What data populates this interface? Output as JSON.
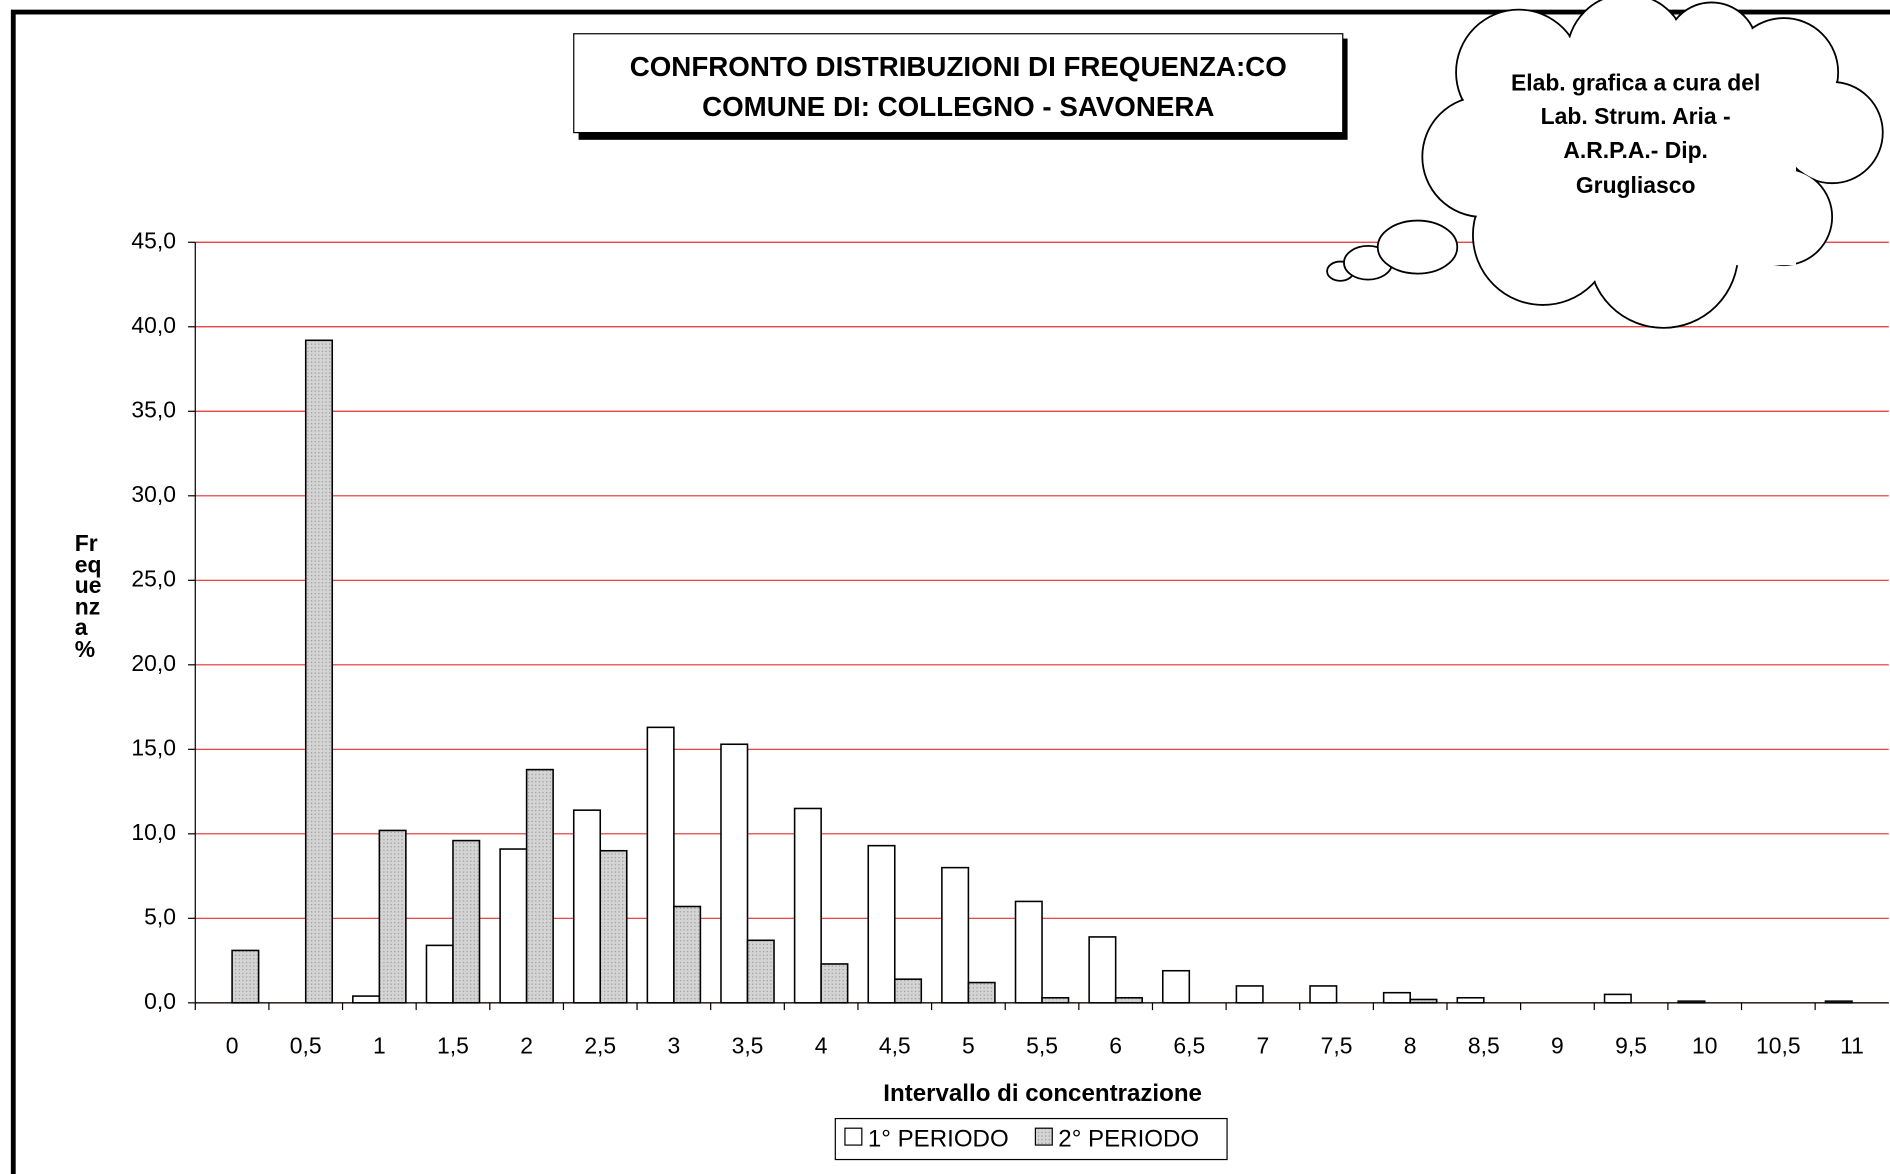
{
  "chart_data": {
    "type": "bar",
    "title": [
      "CONFRONTO DISTRIBUZIONI DI FREQUENZA:CO",
      "COMUNE DI: COLLEGNO - SAVONERA"
    ],
    "annotation": [
      "Elab. grafica a cura del",
      "Lab. Strum. Aria -",
      "A.R.P.A.- Dip.",
      "Grugliasco"
    ],
    "x_label": "Intervallo di concentrazione",
    "y_label": "Frequenza %",
    "categories": [
      "0",
      "0,5",
      "1",
      "1,5",
      "2",
      "2,5",
      "3",
      "3,5",
      "4",
      "4,5",
      "5",
      "5,5",
      "6",
      "6,5",
      "7",
      "7,5",
      "8",
      "8,5",
      "9",
      "9,5",
      "10",
      "10,5",
      "11"
    ],
    "series": [
      {
        "name": "1° PERIODO",
        "color": "#ffffff",
        "values": [
          0,
          0,
          0.4,
          3.4,
          9.1,
          11.4,
          16.3,
          15.3,
          11.5,
          9.3,
          8.0,
          6.0,
          3.9,
          1.9,
          1.0,
          1.0,
          0.6,
          0.3,
          0,
          0.5,
          0.1,
          0,
          0.1
        ]
      },
      {
        "name": "2° PERIODO",
        "color": "#d4d4d4",
        "values": [
          3.1,
          39.2,
          10.2,
          9.6,
          13.8,
          9.0,
          5.7,
          3.7,
          2.3,
          1.4,
          1.2,
          0.3,
          0.3,
          0,
          0,
          0,
          0.2,
          0,
          0,
          0,
          0,
          0,
          0
        ]
      }
    ],
    "ylim": [
      0,
      45
    ],
    "yticks": [
      {
        "value": 0,
        "label": "0,0"
      },
      {
        "value": 5,
        "label": "5,0"
      },
      {
        "value": 10,
        "label": "10,0"
      },
      {
        "value": 15,
        "label": "15,0"
      },
      {
        "value": 20,
        "label": "20,0"
      },
      {
        "value": 25,
        "label": "25,0"
      },
      {
        "value": 30,
        "label": "30,0"
      },
      {
        "value": 35,
        "label": "35,0"
      },
      {
        "value": 40,
        "label": "40,0"
      },
      {
        "value": 45,
        "label": "45,0"
      }
    ],
    "grid": true,
    "grid_color": "#e03030",
    "legend": "bottom"
  }
}
